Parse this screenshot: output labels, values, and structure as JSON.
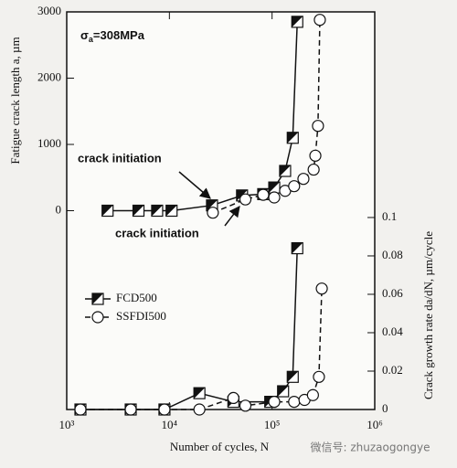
{
  "chart_data": {
    "type": "dual-log-line",
    "annotation": {
      "stress_symbol": "σ",
      "stress_subscript": "a",
      "stress_value": "=308MPa"
    },
    "initiation_labels": [
      "crack initiation",
      "crack initiation"
    ],
    "xlabel": "Number of cycles, N",
    "ylabel": "Fatigue crack length a, µm",
    "y2label": "Crack growth rate da/dN, µm/cycle",
    "watermark": "微信号: zhuzaogongye",
    "xscale": "log",
    "xlim": [
      1000,
      1000000
    ],
    "xticks": [
      {
        "value": 1000,
        "label": "10³"
      },
      {
        "value": 10000,
        "label": "10⁴"
      },
      {
        "value": 100000,
        "label": "10⁵"
      },
      {
        "value": 1000000,
        "label": "10⁶"
      }
    ],
    "ylim": [
      -3000,
      3000
    ],
    "yticks": [
      0,
      1000,
      2000,
      3000
    ],
    "y2lim": [
      0,
      0.2071
    ],
    "y2ticks": [
      0,
      0.02,
      0.04,
      0.06,
      0.08,
      0.1
    ],
    "legend": "left",
    "series": [
      {
        "name": "FCD500",
        "color": "#111111",
        "marker": "half-square",
        "dashed": false,
        "x": [
          2500,
          5000,
          7600,
          10500,
          26000,
          51000,
          82000,
          105000,
          134000,
          159000,
          176000
        ],
        "values": [
          0,
          0,
          0,
          0,
          80,
          230,
          250,
          350,
          600,
          1100,
          2850
        ],
        "rate_x": [
          1360,
          4200,
          8950,
          19600,
          42000,
          96000,
          128000,
          159000,
          176000
        ],
        "rate_values": [
          0,
          0,
          0,
          0.0085,
          0.004,
          0.004,
          0.0095,
          0.017,
          0.084
        ]
      },
      {
        "name": "SSFDI500",
        "color": "#111111",
        "marker": "circle",
        "dashed": true,
        "x": [
          26500,
          55000,
          82000,
          105000,
          134000,
          164000,
          202000,
          254000,
          264000,
          280000,
          292000
        ],
        "values": [
          -30,
          170,
          240,
          200,
          300,
          370,
          480,
          620,
          830,
          1280,
          2880
        ],
        "rate_x": [
          1360,
          4200,
          8950,
          19600,
          42000,
          55000,
          105000,
          164000,
          207000,
          250000,
          286000,
          305000
        ],
        "rate_values": [
          0,
          0,
          0,
          0,
          0.006,
          0.002,
          0.004,
          0.004,
          0.005,
          0.0075,
          0.017,
          0.063
        ]
      }
    ]
  }
}
